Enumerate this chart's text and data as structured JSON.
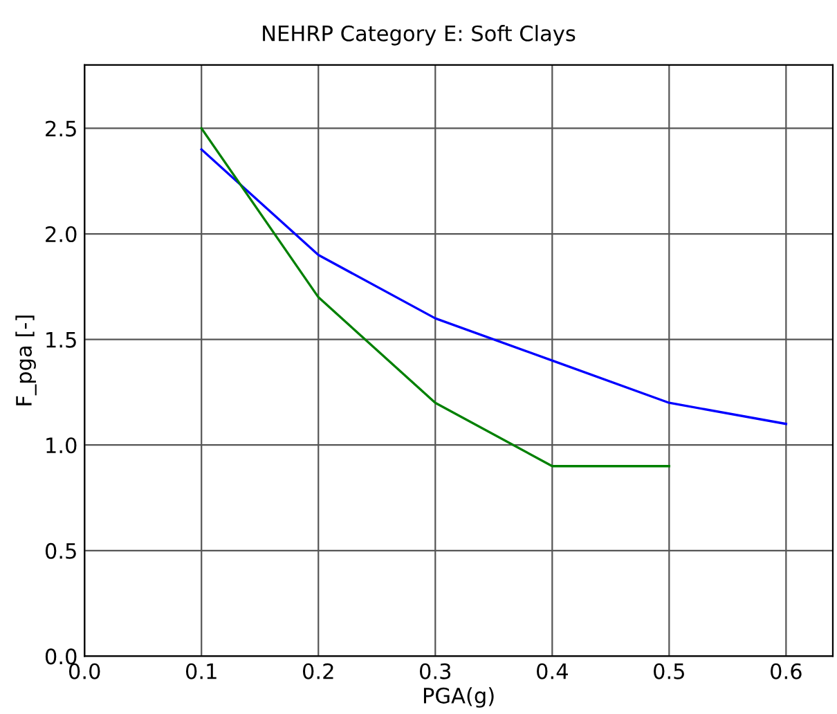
{
  "chart_data": {
    "type": "line",
    "title": "NEHRP Category E: Soft Clays",
    "xlabel": "PGA(g)",
    "ylabel": "F_pga [-]",
    "xlim": [
      0,
      0.64
    ],
    "ylim": [
      0,
      2.8
    ],
    "xticks": [
      {
        "value": 0,
        "label": "0.0"
      },
      0.1,
      0.2,
      0.3,
      0.4,
      0.5,
      0.6
    ],
    "yticks": [
      {
        "value": 0,
        "label": "0.0"
      },
      0.5,
      {
        "value": 1,
        "label": "1.0"
      },
      1.5,
      {
        "value": 2,
        "label": "2.0"
      },
      2.5
    ],
    "grid": true,
    "series": [
      {
        "color": "#0000ff",
        "x": [
          0.1,
          0.2,
          0.3,
          0.4,
          0.5,
          0.6
        ],
        "values": [
          2.4,
          1.9,
          1.6,
          1.4,
          1.2,
          1.1
        ]
      },
      {
        "color": "#008000",
        "x": [
          0.1,
          0.2,
          0.3,
          0.4,
          0.5
        ],
        "values": [
          2.5,
          1.7,
          1.2,
          0.9,
          0.9
        ]
      }
    ]
  }
}
